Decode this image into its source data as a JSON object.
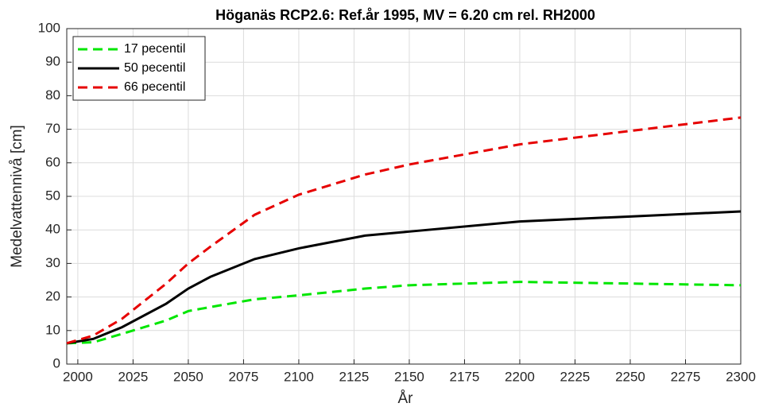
{
  "chart_data": {
    "type": "line",
    "title": "Höganäs RCP2.6: Ref.år 1995, MV = 6.20 cm rel. RH2000",
    "x_label": "År",
    "y_label": "Medelvattennivå [cm]",
    "x": [
      1995,
      2007,
      2020,
      2040,
      2050,
      2060,
      2080,
      2100,
      2130,
      2150,
      2200,
      2250,
      2300
    ],
    "series": [
      {
        "name": "17 pecentil",
        "color": "#00e600",
        "dash": true,
        "values": [
          6.2,
          6.5,
          9,
          13,
          15.8,
          17,
          19.3,
          20.5,
          22.5,
          23.5,
          24.5,
          24,
          23.5
        ]
      },
      {
        "name": "50 pecentil",
        "color": "#000000",
        "dash": false,
        "values": [
          6.2,
          7.5,
          11,
          18,
          22.5,
          26,
          31.3,
          34.5,
          38.3,
          39.5,
          42.5,
          44,
          45.5
        ]
      },
      {
        "name": "66 pecentil",
        "color": "#e60000",
        "dash": true,
        "values": [
          6.2,
          8.5,
          13.5,
          24,
          30,
          35,
          44.5,
          50.5,
          56.5,
          59.5,
          65.5,
          69.5,
          73.5
        ]
      }
    ],
    "xlim": [
      1995,
      2300
    ],
    "xticks": [
      2000,
      2025,
      2050,
      2075,
      2100,
      2125,
      2150,
      2175,
      2200,
      2225,
      2250,
      2275,
      2300
    ],
    "ylim": [
      0,
      100
    ],
    "yticks": [
      0,
      10,
      20,
      30,
      40,
      50,
      60,
      70,
      80,
      90,
      100
    ],
    "grid": true,
    "legend": "upper left"
  }
}
